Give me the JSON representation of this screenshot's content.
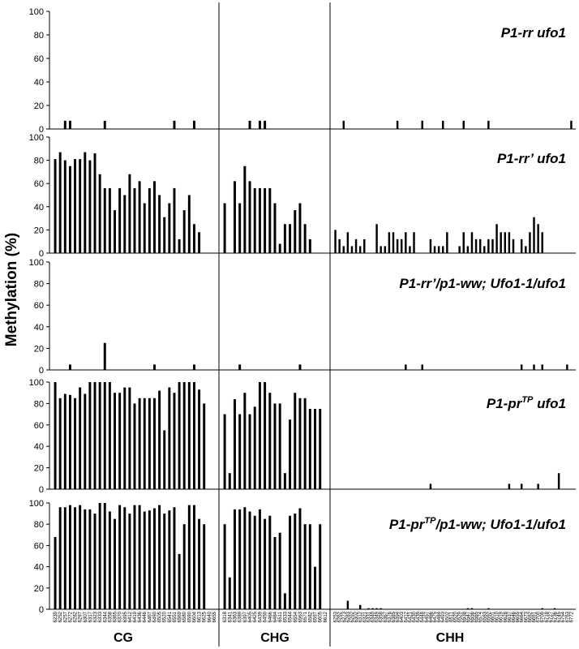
{
  "chart_data": {
    "type": "bar",
    "ylabel": "Methylation (%)",
    "ylim": [
      0,
      100
    ],
    "yticks": [
      "0",
      "20",
      "40",
      "60",
      "80",
      "100"
    ],
    "contexts": [
      "CG",
      "CHG",
      "CHH"
    ],
    "context_counts": [
      33,
      21,
      58
    ],
    "x_tick_labels": {
      "CG": [
        "6239",
        "6252",
        "6257",
        "6272",
        "6282",
        "6297",
        "6307",
        "6317",
        "6323",
        "6333",
        "6344",
        "6358",
        "6365",
        "6370",
        "6395",
        "6412",
        "6419",
        "6436",
        "6446",
        "6467",
        "6490",
        "6505",
        "6520",
        "6541",
        "6551",
        "6569",
        "6580",
        "6590",
        "6604",
        "6613",
        "6625",
        "6640",
        "6655"
      ],
      "CHG": [
        "6318",
        "6341",
        "6363",
        "6389",
        "6397",
        "6405",
        "6425",
        "6439",
        "6450",
        "6466",
        "6484",
        "6511",
        "6533",
        "6544",
        "6554",
        "6563",
        "6571",
        "6582",
        "6597",
        "6605",
        "6612"
      ],
      "CHH": [
        "6253",
        "6262",
        "6273",
        "6283",
        "6292",
        "6302",
        "6312",
        "6321",
        "6331",
        "6340",
        "6349",
        "6358",
        "6367",
        "6376",
        "6385",
        "6394",
        "6403",
        "6412",
        "6421",
        "6430",
        "6439",
        "6448",
        "6457",
        "6466",
        "6475",
        "6484",
        "6493",
        "6502",
        "6511",
        "6520",
        "6529",
        "6538",
        "6547",
        "6556",
        "6565",
        "6574",
        "6583",
        "6592",
        "6601",
        "6610",
        "6619",
        "6628",
        "6637",
        "6646",
        "6655",
        "6664",
        "6673",
        "6682",
        "6691",
        "6700",
        "6709",
        "6718",
        "6727",
        "6736",
        "6745",
        "6754",
        "6763",
        "6772"
      ]
    },
    "panels": [
      {
        "title_main": "P1-rr ufo1",
        "title_sup": "",
        "title_after": "",
        "series": {
          "CG": [
            0,
            0,
            7,
            7,
            0,
            0,
            0,
            0,
            0,
            0,
            7,
            0,
            0,
            0,
            0,
            0,
            0,
            0,
            0,
            0,
            0,
            0,
            0,
            0,
            7,
            0,
            0,
            0,
            7,
            0,
            0,
            0,
            0
          ],
          "CHG": [
            0,
            0,
            0,
            0,
            0,
            7,
            0,
            7,
            7,
            0,
            0,
            0,
            0,
            0,
            0,
            0,
            0,
            0,
            0,
            0,
            0
          ],
          "CHH": [
            0,
            0,
            7,
            0,
            0,
            0,
            0,
            0,
            0,
            0,
            0,
            0,
            0,
            0,
            0,
            7,
            0,
            0,
            0,
            0,
            0,
            7,
            0,
            0,
            0,
            0,
            7,
            0,
            0,
            0,
            0,
            7,
            0,
            0,
            0,
            0,
            0,
            7,
            0,
            0,
            0,
            0,
            0,
            0,
            0,
            0,
            0,
            0,
            0,
            0,
            0,
            0,
            0,
            0,
            0,
            0,
            0,
            7
          ]
        }
      },
      {
        "title_main": "P1-rr’ ufo1",
        "title_sup": "",
        "title_after": "",
        "series": {
          "CG": [
            81,
            87,
            80,
            75,
            81,
            81,
            87,
            80,
            86,
            68,
            56,
            56,
            37,
            56,
            50,
            68,
            56,
            62,
            43,
            56,
            62,
            50,
            31,
            43,
            56,
            12,
            37,
            50,
            25,
            18,
            0,
            0,
            0
          ],
          "CHG": [
            43,
            0,
            62,
            43,
            75,
            62,
            56,
            56,
            56,
            56,
            43,
            8,
            25,
            25,
            37,
            43,
            25,
            12,
            0,
            0,
            0
          ],
          "CHH": [
            20,
            12,
            6,
            18,
            6,
            12,
            6,
            12,
            0,
            0,
            25,
            6,
            6,
            18,
            18,
            12,
            12,
            18,
            6,
            18,
            0,
            0,
            0,
            12,
            6,
            6,
            6,
            18,
            0,
            0,
            6,
            18,
            6,
            18,
            12,
            12,
            6,
            12,
            12,
            25,
            18,
            18,
            18,
            12,
            0,
            12,
            6,
            18,
            31,
            25,
            18,
            0,
            0,
            0,
            0,
            0,
            0,
            0
          ]
        }
      },
      {
        "title_main": "P1-rr’/p1-ww; Ufo1-1/ufo1",
        "title_sup": "",
        "title_after": "",
        "series": {
          "CG": [
            0,
            0,
            0,
            5,
            0,
            0,
            0,
            0,
            0,
            0,
            25,
            0,
            0,
            0,
            0,
            0,
            0,
            0,
            0,
            0,
            5,
            0,
            0,
            0,
            0,
            0,
            0,
            0,
            5,
            0,
            0,
            0,
            0
          ],
          "CHG": [
            0,
            0,
            0,
            5,
            0,
            0,
            0,
            0,
            0,
            0,
            0,
            0,
            0,
            0,
            0,
            5,
            0,
            0,
            0,
            0,
            0
          ],
          "CHH": [
            0,
            0,
            0,
            0,
            0,
            0,
            0,
            0,
            0,
            0,
            0,
            0,
            0,
            0,
            0,
            0,
            0,
            5,
            0,
            0,
            0,
            5,
            0,
            0,
            0,
            0,
            0,
            0,
            0,
            0,
            0,
            0,
            0,
            0,
            0,
            0,
            0,
            0,
            0,
            0,
            0,
            0,
            0,
            0,
            0,
            5,
            0,
            0,
            5,
            0,
            5,
            0,
            0,
            0,
            0,
            0,
            5,
            0
          ]
        }
      },
      {
        "title_main": "P1-pr",
        "title_sup": "TP",
        "title_after": " ufo1",
        "series": {
          "CG": [
            100,
            85,
            89,
            88,
            85,
            95,
            89,
            100,
            100,
            100,
            100,
            100,
            90,
            90,
            95,
            95,
            80,
            85,
            85,
            85,
            85,
            92,
            55,
            95,
            90,
            100,
            100,
            100,
            100,
            93,
            80,
            0,
            0
          ],
          "CHG": [
            70,
            15,
            84,
            70,
            90,
            70,
            77,
            100,
            100,
            90,
            80,
            80,
            15,
            65,
            90,
            85,
            85,
            75,
            75,
            75,
            0
          ],
          "CHH": [
            0,
            0,
            0,
            0,
            0,
            0,
            0,
            0,
            0,
            0,
            0,
            0,
            0,
            0,
            0,
            0,
            0,
            0,
            0,
            0,
            0,
            0,
            0,
            5,
            0,
            0,
            0,
            0,
            0,
            0,
            0,
            0,
            0,
            0,
            0,
            0,
            0,
            0,
            0,
            0,
            0,
            0,
            5,
            0,
            0,
            5,
            0,
            0,
            0,
            5,
            0,
            0,
            0,
            0,
            15,
            0,
            0,
            0
          ]
        }
      },
      {
        "title_main": "P1-pr",
        "title_sup": "TP",
        "title_after": "/p1-ww; Ufo1-1/ufo1",
        "series": {
          "CG": [
            68,
            96,
            96,
            98,
            96,
            98,
            94,
            94,
            90,
            100,
            100,
            92,
            85,
            98,
            96,
            90,
            98,
            98,
            92,
            93,
            95,
            98,
            90,
            93,
            96,
            52,
            80,
            98,
            98,
            85,
            80,
            0,
            0
          ],
          "CHG": [
            80,
            30,
            94,
            94,
            96,
            92,
            88,
            94,
            85,
            88,
            68,
            72,
            15,
            88,
            90,
            95,
            80,
            80,
            40,
            80,
            0
          ],
          "CHH": [
            0,
            0,
            0,
            8,
            0,
            0,
            4,
            0,
            1,
            1,
            1,
            1,
            0,
            0,
            0,
            0,
            0,
            0,
            0,
            0,
            0,
            0,
            0,
            0,
            0,
            0,
            0,
            0,
            0,
            0,
            0,
            0,
            1,
            1,
            0,
            0,
            0,
            1,
            0,
            0,
            0,
            0,
            0,
            0,
            0,
            0,
            0,
            0,
            0,
            0,
            1,
            0,
            0,
            1,
            0,
            0,
            0,
            0
          ]
        }
      }
    ]
  }
}
